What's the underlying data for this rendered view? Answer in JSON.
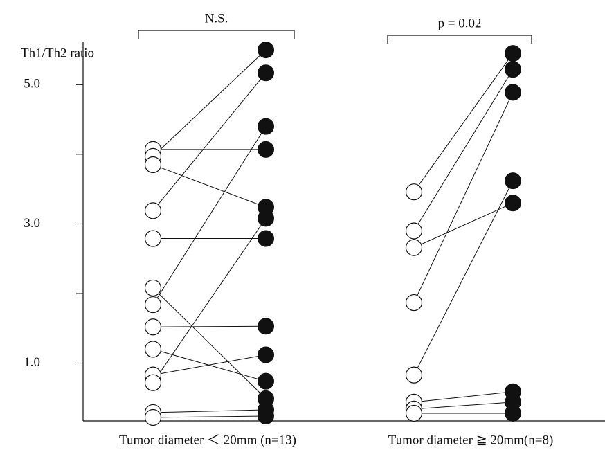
{
  "chart_data": {
    "type": "paired",
    "y_label": "Th1/Th2 ratio",
    "ylim": [
      0.17,
      5.62
    ],
    "yticks": [
      {
        "value": 1,
        "label": "1.0"
      },
      {
        "value": 3,
        "label": "3.0"
      },
      {
        "value": 5,
        "label": "5.0"
      }
    ],
    "minor_yticks": [
      2,
      4
    ],
    "groups": [
      {
        "label": "Tumor diameter ＜ 20mm (n=13)",
        "annotation": "N.S.",
        "before": [
          4.07,
          3.97,
          3.85,
          3.19,
          2.79,
          2.08,
          1.84,
          1.52,
          1.2,
          0.83,
          0.72,
          0.29,
          0.22
        ],
        "after": [
          4.07,
          5.5,
          3.24,
          5.17,
          2.79,
          0.49,
          4.4,
          1.53,
          0.74,
          1.12,
          3.08,
          0.33,
          0.24
        ]
      },
      {
        "label": "Tumor diameter ≧ 20mm(n=8)",
        "annotation": "p = 0.02",
        "before": [
          3.46,
          2.9,
          2.66,
          1.87,
          0.83,
          0.44,
          0.34,
          0.28
        ],
        "after": [
          5.45,
          5.22,
          3.3,
          4.89,
          3.62,
          0.59,
          0.44,
          0.28
        ]
      }
    ]
  }
}
